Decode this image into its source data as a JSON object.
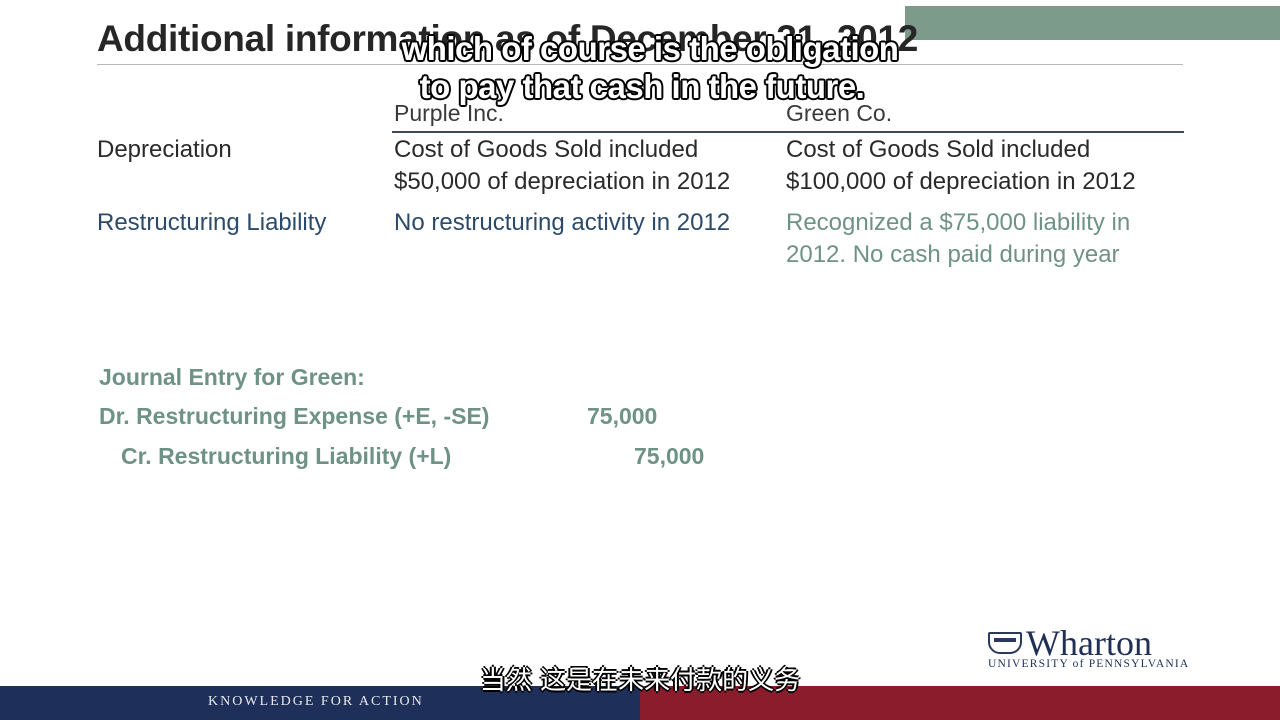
{
  "slide": {
    "title": "Additional information as of December 31, 2012",
    "columns": [
      "Purple Inc.",
      "Green Co."
    ],
    "rows": [
      {
        "label": "Depreciation",
        "purple": [
          "Cost of Goods Sold included",
          "$50,000 of depreciation in 2012"
        ],
        "green": [
          "Cost of Goods Sold included",
          "$100,000 of depreciation in 2012"
        ]
      },
      {
        "label": "Restructuring Liability",
        "purple": [
          "No restructuring activity in 2012"
        ],
        "green": [
          "Recognized a $75,000 liability in",
          "2012.  No cash paid during year"
        ]
      }
    ],
    "journal_entry": {
      "heading": "Journal Entry for Green:",
      "debit_label": "Dr. Restructuring Expense (+E, -SE)",
      "debit_amount": "75,000",
      "credit_label": "Cr. Restructuring Liability (+L)",
      "credit_amount": "75,000"
    }
  },
  "captions": {
    "english": [
      "which of course is the obligation",
      "to pay that cash in the future."
    ],
    "chinese": "当然 这是在未来付款的义务"
  },
  "branding": {
    "logo_word": "Wharton",
    "logo_sub": "UNIVERSITY of PENNSYLVANIA",
    "footer_text": "KNOWLEDGE FOR ACTION"
  }
}
